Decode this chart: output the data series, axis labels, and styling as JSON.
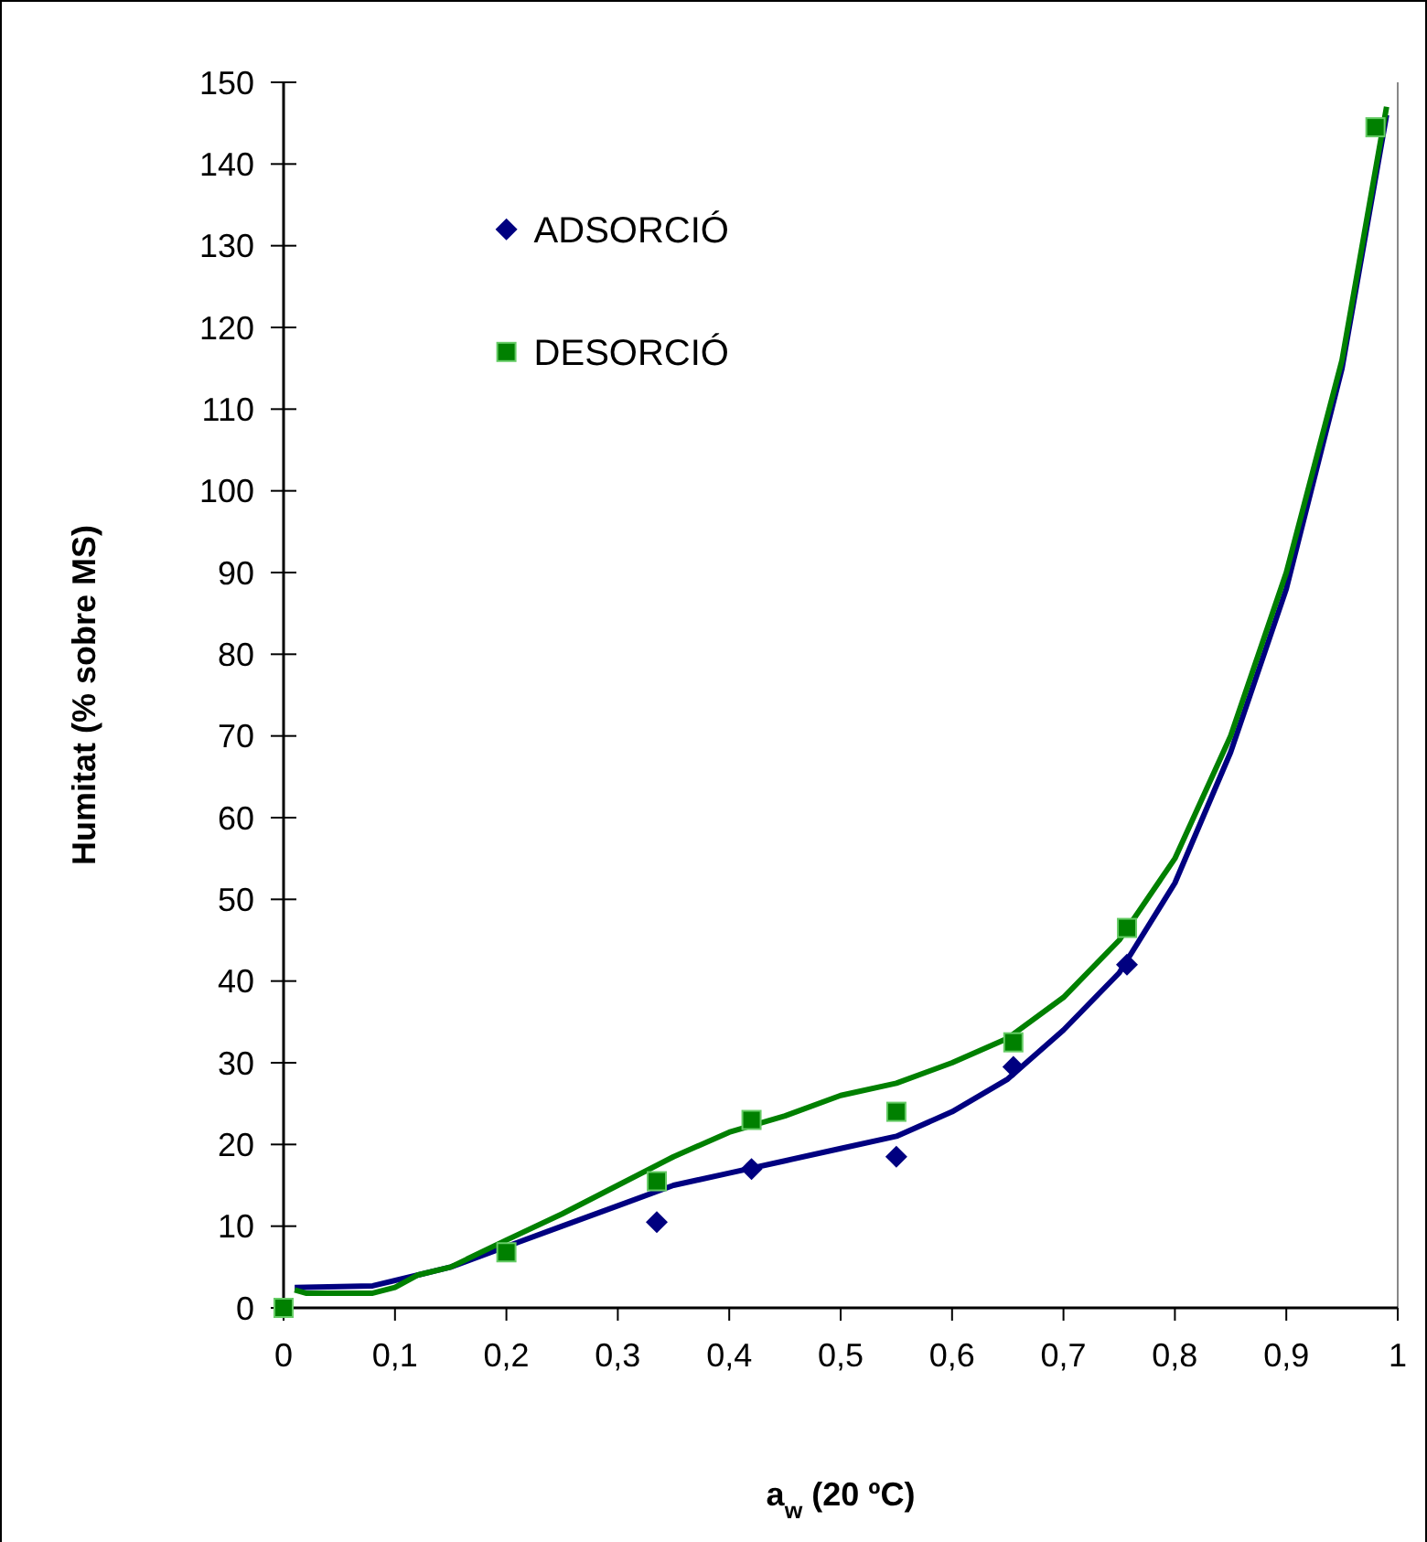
{
  "chart_data": {
    "type": "scatter",
    "xlabel": "a$_{w}$ (20 ºC)",
    "ylabel": "Humitat (% sobre MS)",
    "xlim": [
      0,
      1
    ],
    "ylim": [
      0,
      150
    ],
    "xticks": [
      0,
      {
        "value": 0.1,
        "label": "0,1"
      },
      {
        "value": 0.2,
        "label": "0,2"
      },
      {
        "value": 0.3,
        "label": "0,3"
      },
      {
        "value": 0.4,
        "label": "0,4"
      },
      {
        "value": 0.5,
        "label": "0,5"
      },
      {
        "value": 0.6,
        "label": "0,6"
      },
      {
        "value": 0.7,
        "label": "0,7"
      },
      {
        "value": 0.8,
        "label": "0,8"
      },
      {
        "value": 0.9,
        "label": "0,9"
      },
      1
    ],
    "yticks": [
      0,
      10,
      20,
      30,
      40,
      50,
      60,
      70,
      80,
      90,
      100,
      110,
      120,
      130,
      140,
      150
    ],
    "grid": false,
    "legend": "top left",
    "series": [
      {
        "type": "line",
        "color": "#000080",
        "marker": "none",
        "line_style": "solid",
        "x": [
          0.01,
          0.08,
          0.12,
          0.15,
          0.2,
          0.25,
          0.3,
          0.35,
          0.4,
          0.45,
          0.5,
          0.55,
          0.6,
          0.65,
          0.7,
          0.75,
          0.8,
          0.85,
          0.9,
          0.95,
          0.99
        ],
        "values": [
          2.5,
          2.7,
          4,
          5,
          7.5,
          10,
          12.5,
          15,
          16.5,
          18,
          19.5,
          21,
          24,
          28,
          34,
          41,
          52,
          68,
          88,
          115,
          146
        ]
      },
      {
        "type": "line",
        "color": "#008000",
        "marker": "none",
        "line_style": "solid",
        "x": [
          0.01,
          0.02,
          0.08,
          0.1,
          0.12,
          0.15,
          0.2,
          0.25,
          0.3,
          0.35,
          0.4,
          0.45,
          0.5,
          0.55,
          0.6,
          0.65,
          0.7,
          0.75,
          0.8,
          0.85,
          0.9,
          0.95,
          0.99
        ],
        "values": [
          2.2,
          1.8,
          1.8,
          2.5,
          4,
          5,
          8.3,
          11.5,
          15,
          18.5,
          21.5,
          23.5,
          26,
          27.5,
          30,
          33,
          38,
          45,
          55,
          70,
          90,
          116,
          147
        ]
      },
      {
        "name": "ADSORCIÓ",
        "type": "scatter",
        "color": "#000080",
        "marker": "diamond",
        "x": [
          0.335,
          0.42,
          0.55,
          0.655,
          0.757
        ],
        "values": [
          10.5,
          17,
          18.5,
          29.5,
          42
        ]
      },
      {
        "name": "DESORCIÓ",
        "type": "scatter",
        "color": "#008000",
        "marker": "square",
        "x": [
          0,
          0.2,
          0.335,
          0.42,
          0.55,
          0.655,
          0.757,
          0.98
        ],
        "values": [
          0,
          6.8,
          15.5,
          23,
          24,
          32.5,
          46.5,
          144.5
        ]
      }
    ]
  }
}
